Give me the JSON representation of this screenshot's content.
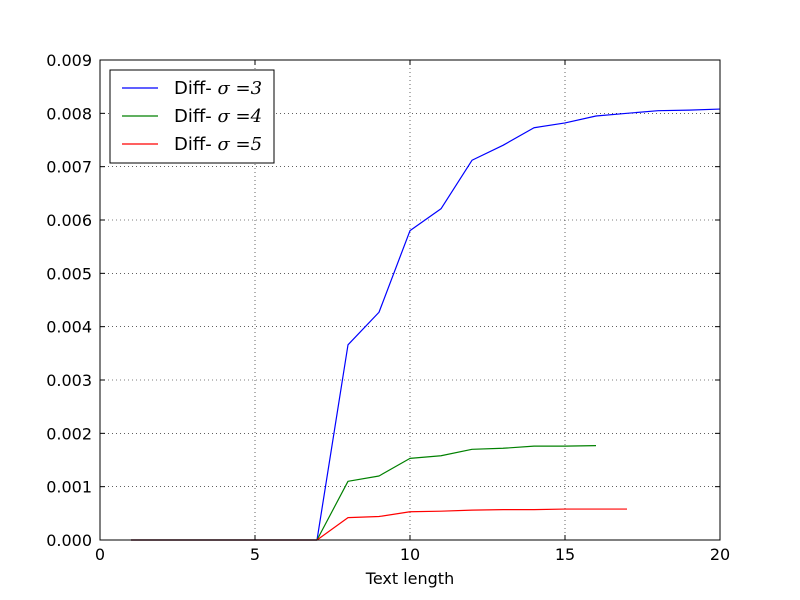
{
  "chart_data": {
    "type": "line",
    "title": "",
    "xlabel": "Text length",
    "ylabel": "",
    "xlim": [
      0,
      20
    ],
    "ylim": [
      0,
      0.009
    ],
    "xticks": [
      0,
      5,
      10,
      15,
      20
    ],
    "xtick_labels": [
      "0",
      "5",
      "10",
      "15",
      "20"
    ],
    "yticks": [
      0.0,
      0.001,
      0.002,
      0.003,
      0.004,
      0.005,
      0.006,
      0.007,
      0.008,
      0.009
    ],
    "ytick_labels": [
      "0.000",
      "0.001",
      "0.002",
      "0.003",
      "0.004",
      "0.005",
      "0.006",
      "0.007",
      "0.008",
      "0.009"
    ],
    "grid": true,
    "legend_position": "top-left",
    "series": [
      {
        "name": "Diff- σ=3",
        "legend_prefix": "Diff-",
        "legend_math": "σ =3",
        "color": "#0000ff",
        "x": [
          1,
          2,
          3,
          4,
          5,
          6,
          7,
          8,
          9,
          10,
          11,
          12,
          13,
          14,
          15,
          16,
          17,
          18,
          19,
          20
        ],
        "y": [
          0,
          0,
          0,
          0,
          0,
          0,
          0,
          0.00366,
          0.00427,
          0.0058,
          0.00621,
          0.00712,
          0.0074,
          0.00773,
          0.00782,
          0.00795,
          0.008,
          0.00805,
          0.00806,
          0.00808
        ]
      },
      {
        "name": "Diff- σ=4",
        "legend_prefix": "Diff-",
        "legend_math": "σ =4",
        "color": "#008000",
        "x": [
          1,
          2,
          3,
          4,
          5,
          6,
          7,
          8,
          9,
          10,
          11,
          12,
          13,
          14,
          15,
          16
        ],
        "y": [
          0,
          0,
          0,
          0,
          0,
          0,
          0,
          0.0011,
          0.0012,
          0.00153,
          0.00158,
          0.0017,
          0.00172,
          0.00176,
          0.00176,
          0.00177
        ]
      },
      {
        "name": "Diff- σ=5",
        "legend_prefix": "Diff-",
        "legend_math": "σ =5",
        "color": "#ff0000",
        "x": [
          1,
          2,
          3,
          4,
          5,
          6,
          7,
          8,
          9,
          10,
          11,
          12,
          13,
          14,
          15,
          16,
          17
        ],
        "y": [
          0,
          0,
          0,
          0,
          0,
          0,
          0,
          0.00042,
          0.00044,
          0.00053,
          0.00054,
          0.00056,
          0.00057,
          0.00057,
          0.00058,
          0.00058,
          0.00058
        ]
      }
    ]
  }
}
